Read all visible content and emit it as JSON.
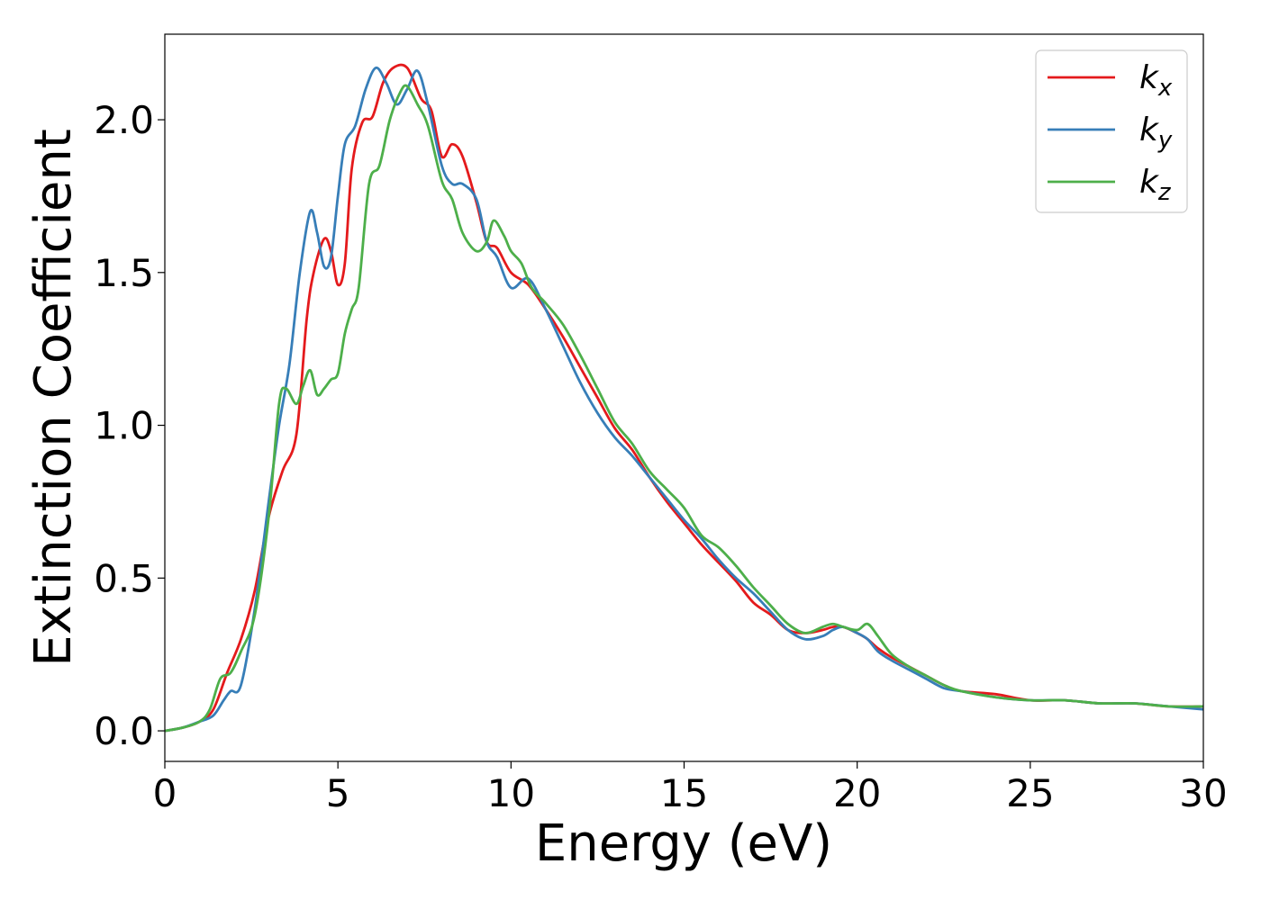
{
  "chart_data": {
    "type": "line",
    "xlabel": "Energy (eV)",
    "ylabel": "Extinction Coefficient",
    "xlim": [
      0,
      30
    ],
    "ylim": [
      -0.1,
      2.28
    ],
    "xticks": [
      "0",
      "5",
      "10",
      "15",
      "20",
      "25",
      "30"
    ],
    "yticks": [
      "0.0",
      "0.5",
      "1.0",
      "1.5",
      "2.0"
    ],
    "grid": false,
    "legend_position": "top-right",
    "series": [
      {
        "name": "k",
        "subscript": "x",
        "color": "#e41a1c",
        "x": [
          0,
          0.5,
          1.0,
          1.4,
          1.8,
          2.2,
          2.6,
          3.0,
          3.4,
          3.8,
          4.1,
          4.3,
          4.6,
          4.8,
          5.0,
          5.2,
          5.4,
          5.7,
          6.0,
          6.3,
          6.6,
          7.0,
          7.4,
          7.7,
          8.0,
          8.3,
          8.6,
          9.0,
          9.3,
          9.6,
          10.0,
          10.5,
          11.0,
          11.5,
          12.0,
          12.5,
          13.0,
          13.5,
          14.0,
          14.5,
          15.0,
          15.5,
          16.0,
          16.5,
          17.0,
          17.5,
          18.0,
          18.5,
          19.0,
          19.3,
          19.6,
          20.0,
          20.3,
          20.6,
          21.0,
          21.5,
          22.0,
          22.5,
          23.0,
          24.0,
          25.0,
          26.0,
          27.0,
          28.0,
          29.0,
          30.0
        ],
        "y": [
          0.0,
          0.01,
          0.03,
          0.07,
          0.19,
          0.3,
          0.46,
          0.7,
          0.85,
          0.97,
          1.35,
          1.5,
          1.61,
          1.57,
          1.46,
          1.53,
          1.84,
          1.99,
          2.01,
          2.12,
          2.17,
          2.17,
          2.07,
          2.03,
          1.88,
          1.92,
          1.88,
          1.73,
          1.6,
          1.58,
          1.5,
          1.46,
          1.38,
          1.29,
          1.19,
          1.09,
          0.99,
          0.92,
          0.83,
          0.75,
          0.68,
          0.61,
          0.55,
          0.49,
          0.42,
          0.38,
          0.33,
          0.32,
          0.33,
          0.34,
          0.34,
          0.32,
          0.3,
          0.27,
          0.24,
          0.21,
          0.18,
          0.15,
          0.13,
          0.12,
          0.1,
          0.1,
          0.09,
          0.09,
          0.08,
          0.08
        ]
      },
      {
        "name": "k",
        "subscript": "y",
        "color": "#377eb8",
        "x": [
          0,
          0.5,
          1.0,
          1.4,
          1.7,
          1.9,
          2.2,
          2.6,
          3.0,
          3.3,
          3.6,
          3.9,
          4.2,
          4.4,
          4.6,
          4.8,
          5.0,
          5.2,
          5.5,
          5.8,
          6.1,
          6.4,
          6.7,
          7.0,
          7.3,
          7.6,
          8.0,
          8.3,
          8.6,
          9.0,
          9.3,
          9.6,
          10.0,
          10.5,
          11.0,
          11.5,
          12.0,
          12.5,
          13.0,
          13.5,
          14.0,
          14.5,
          15.0,
          15.5,
          16.0,
          16.5,
          17.0,
          17.5,
          18.0,
          18.5,
          19.0,
          19.3,
          19.6,
          20.0,
          20.3,
          20.6,
          21.0,
          21.5,
          22.0,
          22.5,
          23.0,
          24.0,
          25.0,
          26.0,
          27.0,
          28.0,
          29.0,
          30.0
        ],
        "y": [
          0.0,
          0.01,
          0.03,
          0.05,
          0.1,
          0.13,
          0.15,
          0.4,
          0.75,
          1.0,
          1.2,
          1.5,
          1.7,
          1.63,
          1.52,
          1.55,
          1.75,
          1.92,
          1.98,
          2.1,
          2.17,
          2.12,
          2.05,
          2.1,
          2.16,
          2.05,
          1.85,
          1.79,
          1.79,
          1.74,
          1.6,
          1.55,
          1.45,
          1.48,
          1.38,
          1.26,
          1.14,
          1.04,
          0.96,
          0.9,
          0.83,
          0.76,
          0.69,
          0.63,
          0.56,
          0.5,
          0.45,
          0.39,
          0.33,
          0.3,
          0.31,
          0.33,
          0.34,
          0.32,
          0.3,
          0.26,
          0.23,
          0.2,
          0.17,
          0.14,
          0.13,
          0.11,
          0.1,
          0.1,
          0.09,
          0.09,
          0.08,
          0.07
        ]
      },
      {
        "name": "k",
        "subscript": "z",
        "color": "#4daf4a",
        "x": [
          0,
          0.5,
          1.0,
          1.3,
          1.6,
          1.9,
          2.2,
          2.6,
          3.0,
          3.3,
          3.5,
          3.8,
          4.0,
          4.2,
          4.4,
          4.6,
          4.8,
          5.0,
          5.2,
          5.4,
          5.6,
          5.9,
          6.2,
          6.5,
          6.8,
          7.0,
          7.3,
          7.6,
          8.0,
          8.3,
          8.6,
          9.0,
          9.3,
          9.5,
          9.8,
          10.0,
          10.3,
          10.6,
          11.0,
          11.5,
          12.0,
          12.5,
          13.0,
          13.5,
          14.0,
          14.5,
          15.0,
          15.5,
          16.0,
          16.5,
          17.0,
          17.5,
          18.0,
          18.5,
          19.0,
          19.3,
          19.6,
          20.0,
          20.3,
          20.6,
          21.0,
          21.5,
          22.0,
          22.5,
          23.0,
          24.0,
          25.0,
          26.0,
          27.0,
          28.0,
          29.0,
          30.0
        ],
        "y": [
          0.0,
          0.01,
          0.03,
          0.07,
          0.17,
          0.19,
          0.26,
          0.38,
          0.7,
          1.07,
          1.12,
          1.07,
          1.13,
          1.18,
          1.1,
          1.12,
          1.15,
          1.17,
          1.3,
          1.38,
          1.45,
          1.79,
          1.85,
          2.0,
          2.09,
          2.11,
          2.05,
          1.98,
          1.8,
          1.74,
          1.63,
          1.57,
          1.6,
          1.67,
          1.62,
          1.57,
          1.53,
          1.45,
          1.4,
          1.33,
          1.23,
          1.12,
          1.01,
          0.94,
          0.85,
          0.79,
          0.73,
          0.64,
          0.6,
          0.54,
          0.47,
          0.41,
          0.35,
          0.32,
          0.34,
          0.35,
          0.34,
          0.33,
          0.35,
          0.31,
          0.25,
          0.21,
          0.18,
          0.15,
          0.13,
          0.11,
          0.1,
          0.1,
          0.09,
          0.09,
          0.08,
          0.08
        ]
      }
    ]
  }
}
